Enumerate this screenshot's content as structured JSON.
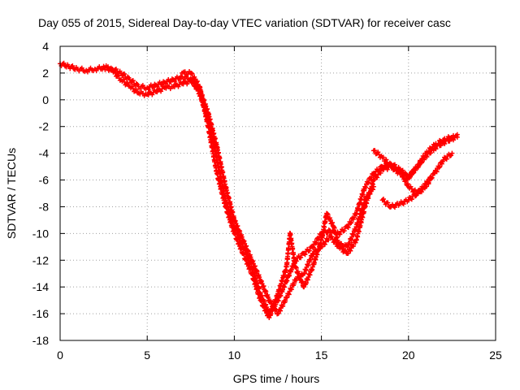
{
  "chart_data": {
    "type": "scatter",
    "title": "Day 055 of 2015, Sidereal Day-to-day VTEC variation (SDTVAR) for receiver casc",
    "xlabel": "GPS time / hours",
    "ylabel": "SDTVAR / TECUs",
    "xlim": [
      0,
      25
    ],
    "ylim": [
      -18,
      4
    ],
    "x_ticks": [
      0,
      5,
      10,
      15,
      20,
      25
    ],
    "y_ticks": [
      -18,
      -16,
      -14,
      -12,
      -10,
      -8,
      -6,
      -4,
      -2,
      0,
      2,
      4
    ],
    "grid": true,
    "legend": "none",
    "marker": "plus",
    "colors": {
      "series": "#ff0000",
      "grid": "#a0a0a0",
      "axis": "#000000",
      "background": "#ffffff"
    },
    "series": [
      {
        "points": [
          [
            0.0,
            2.7
          ],
          [
            0.5,
            2.5
          ],
          [
            1.0,
            2.3
          ],
          [
            1.5,
            2.2
          ],
          [
            2.0,
            2.3
          ],
          [
            2.5,
            2.4
          ],
          [
            3.0,
            2.3
          ],
          [
            3.5,
            2.0
          ],
          [
            4.0,
            1.5
          ],
          [
            4.5,
            1.0
          ],
          [
            5.0,
            0.9
          ],
          [
            5.5,
            1.1
          ],
          [
            6.0,
            1.3
          ],
          [
            6.5,
            1.5
          ],
          [
            7.0,
            1.7
          ],
          [
            7.5,
            1.6
          ],
          [
            8.0,
            0.5
          ],
          [
            8.5,
            -1.5
          ],
          [
            9.0,
            -4.5
          ],
          [
            9.5,
            -7.5
          ],
          [
            10.0,
            -9.5
          ],
          [
            10.5,
            -11.0
          ],
          [
            11.0,
            -12.5
          ],
          [
            11.5,
            -14.5
          ],
          [
            12.0,
            -16.0
          ],
          [
            12.5,
            -15.0
          ],
          [
            13.0,
            -13.5
          ],
          [
            13.5,
            -12.0
          ],
          [
            14.0,
            -11.5
          ],
          [
            14.5,
            -11.0
          ],
          [
            15.0,
            -10.0
          ],
          [
            15.5,
            -9.8
          ],
          [
            16.0,
            -10.0
          ],
          [
            16.5,
            -9.5
          ],
          [
            17.0,
            -8.5
          ],
          [
            17.5,
            -6.5
          ],
          [
            18.0,
            -5.5
          ],
          [
            18.5,
            -5.0
          ],
          [
            19.0,
            -4.8
          ],
          [
            19.5,
            -5.2
          ],
          [
            20.0,
            -5.8
          ],
          [
            20.5,
            -5.0
          ],
          [
            21.0,
            -4.2
          ],
          [
            21.5,
            -3.6
          ],
          [
            22.0,
            -3.2
          ],
          [
            22.5,
            -2.9
          ],
          [
            22.8,
            -2.8
          ]
        ]
      },
      {
        "points": [
          [
            2.5,
            2.5
          ],
          [
            3.0,
            2.2
          ],
          [
            3.5,
            1.5
          ],
          [
            4.0,
            1.0
          ],
          [
            4.5,
            0.5
          ],
          [
            5.0,
            0.4
          ],
          [
            5.5,
            0.6
          ],
          [
            6.0,
            0.9
          ],
          [
            6.5,
            1.0
          ],
          [
            7.0,
            1.2
          ],
          [
            7.5,
            1.4
          ],
          [
            8.0,
            0.8
          ],
          [
            8.5,
            -1.0
          ],
          [
            9.0,
            -3.5
          ],
          [
            9.5,
            -6.5
          ],
          [
            10.0,
            -9.0
          ],
          [
            10.5,
            -10.5
          ],
          [
            11.0,
            -12.0
          ],
          [
            11.5,
            -13.5
          ],
          [
            12.0,
            -15.0
          ],
          [
            12.5,
            -16.0
          ],
          [
            13.0,
            -14.8
          ],
          [
            13.5,
            -13.5
          ],
          [
            14.0,
            -13.0
          ],
          [
            14.5,
            -11.5
          ],
          [
            15.0,
            -11.0
          ],
          [
            15.5,
            -10.2
          ],
          [
            16.0,
            -11.0
          ],
          [
            16.5,
            -11.5
          ],
          [
            17.0,
            -10.5
          ],
          [
            17.5,
            -8.0
          ],
          [
            18.0,
            -6.0
          ],
          [
            18.5,
            -5.2
          ],
          [
            19.0,
            -5.0
          ],
          [
            19.5,
            -5.3
          ],
          [
            20.0,
            -6.5
          ],
          [
            20.5,
            -7.0
          ],
          [
            21.0,
            -6.5
          ],
          [
            21.3,
            -5.8
          ]
        ]
      },
      {
        "points": [
          [
            7.0,
            2.0
          ],
          [
            7.5,
            2.0
          ],
          [
            8.0,
            1.0
          ],
          [
            8.5,
            -2.0
          ],
          [
            9.0,
            -5.5
          ],
          [
            9.5,
            -8.0
          ],
          [
            10.0,
            -10.0
          ],
          [
            10.5,
            -11.5
          ],
          [
            11.0,
            -13.0
          ],
          [
            11.5,
            -15.0
          ],
          [
            12.0,
            -16.3
          ],
          [
            12.5,
            -14.5
          ],
          [
            13.0,
            -12.5
          ],
          [
            13.2,
            -10.0
          ],
          [
            13.5,
            -12.5
          ],
          [
            14.0,
            -14.0
          ],
          [
            14.5,
            -12.5
          ],
          [
            15.0,
            -10.5
          ],
          [
            15.3,
            -8.5
          ],
          [
            15.7,
            -9.5
          ],
          [
            16.0,
            -10.8
          ],
          [
            16.5,
            -11.0
          ],
          [
            17.0,
            -9.5
          ],
          [
            17.5,
            -7.5
          ],
          [
            18.0,
            -6.5
          ]
        ]
      },
      {
        "points": [
          [
            18.5,
            -7.5
          ],
          [
            19.0,
            -8.0
          ],
          [
            19.5,
            -7.8
          ],
          [
            20.0,
            -7.5
          ],
          [
            20.5,
            -7.0
          ],
          [
            21.0,
            -6.3
          ],
          [
            21.5,
            -5.5
          ],
          [
            22.0,
            -4.5
          ],
          [
            22.5,
            -4.0
          ]
        ]
      },
      {
        "points": [
          [
            18.0,
            -3.8
          ],
          [
            18.5,
            -4.3
          ],
          [
            19.0,
            -5.0
          ],
          [
            19.5,
            -5.5
          ],
          [
            20.0,
            -5.8
          ],
          [
            20.5,
            -5.0
          ],
          [
            21.0,
            -4.0
          ],
          [
            21.5,
            -3.4
          ],
          [
            22.0,
            -3.0
          ],
          [
            22.5,
            -2.8
          ],
          [
            22.8,
            -2.6
          ]
        ]
      }
    ]
  }
}
